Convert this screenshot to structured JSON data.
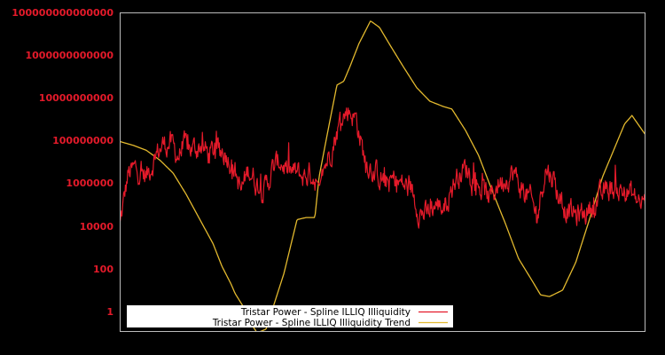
{
  "chart_data": {
    "type": "line",
    "title": "",
    "xlabel": "",
    "ylabel": "",
    "yscale": "log",
    "ylim": [
      0.1,
      100000000000000
    ],
    "grid": false,
    "legend_position": "lower-left (inside)",
    "background": "#000000",
    "frame_color": "#bbbbbb",
    "y_ticks": [
      {
        "value": 100000000000000,
        "label": "100000000000000"
      },
      {
        "value": 1000000000000,
        "label": "1000000000000"
      },
      {
        "value": 10000000000,
        "label": "10000000000"
      },
      {
        "value": 100000000,
        "label": "100000000"
      },
      {
        "value": 1000000,
        "label": "1000000"
      },
      {
        "value": 10000,
        "label": "10000"
      },
      {
        "value": 100,
        "label": "100"
      },
      {
        "value": 1,
        "label": "1"
      }
    ],
    "x_normalized_range": [
      0,
      100
    ],
    "series": [
      {
        "name": "Tristar Power - Spline ILLIQ Illiquidity",
        "color": "#e41a2a",
        "style": "noisy",
        "x": [
          0,
          1.5,
          3,
          5,
          6.5,
          8,
          9.5,
          11,
          12.5,
          14,
          15.5,
          17,
          18.5,
          20,
          21.5,
          23,
          24.5,
          26,
          27.5,
          29,
          30.5,
          32,
          33.5,
          35,
          36.5,
          38,
          38.5,
          40,
          42,
          43.5,
          45,
          46.5,
          48,
          49.5,
          51,
          52.5,
          54,
          55.5,
          57,
          58.5,
          60,
          61.5,
          63,
          64.5,
          66,
          67.5,
          69,
          70.5,
          72,
          73.5,
          75,
          76.5,
          78,
          79.5,
          81,
          82.5,
          84,
          85.5,
          87,
          88.5,
          90,
          91.5,
          93,
          94.5,
          96,
          97.5,
          99,
          100
        ],
        "values": [
          12000,
          2500000,
          5000000,
          2000000,
          15000000,
          60000000,
          80000000,
          20000000,
          50000000,
          40000000,
          60000000,
          20000000,
          45000000,
          30000000,
          8000000,
          400000,
          5000000,
          1000000,
          500000,
          4000000,
          12000000,
          3000000,
          3000000,
          2000000,
          3000000,
          800000,
          3000000,
          30000000,
          800000000,
          3000000000,
          1000000000,
          15000000,
          5000000,
          2000000,
          1000000,
          1500000,
          800000,
          500000,
          50000,
          30000,
          100000,
          80000,
          500000,
          3000000,
          5000000,
          2000000,
          400000,
          200000,
          1000000,
          2000000,
          3000000,
          500000,
          200000,
          30000,
          5000000,
          2000000,
          100000,
          50000,
          30000,
          40000,
          100000,
          200000,
          600000,
          500000,
          400000,
          300000,
          100000,
          150000
        ]
      },
      {
        "name": "Tristar Power - Spline ILLIQ Illiquidity Trend",
        "color": "#e3b92e",
        "style": "smooth",
        "x": [
          0,
          2.5,
          5,
          7.6,
          10.1,
          12.6,
          15.2,
          17.7,
          19.4,
          21.1,
          21.9,
          23.6,
          25.3,
          26.1,
          27.8,
          29.5,
          31.2,
          33.7,
          35.4,
          37.1,
          37.9,
          39.6,
          41.3,
          42.6,
          43.8,
          45.5,
          47.7,
          49.4,
          51.4,
          53.9,
          56.5,
          59,
          61.5,
          63.2,
          65.8,
          68.3,
          70.8,
          73.4,
          75.9,
          78.4,
          80.1,
          81.8,
          84.3,
          86.8,
          89.4,
          91.9,
          94.4,
          96.1,
          97.5,
          100
        ],
        "values": [
          90000000,
          60000000,
          35000000,
          12000000,
          3000000,
          300000,
          20000,
          1500,
          130,
          20,
          7,
          1.5,
          0.2,
          0.1,
          0.15,
          3,
          60,
          20000,
          25000,
          25000,
          2000000,
          300000000,
          40000000000,
          60000000000,
          300000000000,
          3500000000000,
          40000000000000,
          20000000000000,
          3000000000000,
          300000000000,
          30000000000,
          7000000000,
          4000000000,
          3000000000,
          300000000,
          20000000,
          500000,
          13000,
          300,
          30,
          6,
          5,
          10,
          200,
          20000,
          2000000,
          60000000,
          600000000,
          1500000000,
          200000000
        ]
      }
    ]
  },
  "legend": {
    "items": [
      {
        "label": "Tristar Power - Spline ILLIQ Illiquidity",
        "color": "#e41a2a"
      },
      {
        "label": "Tristar Power - Spline ILLIQ Illiquidity Trend",
        "color": "#e3b92e"
      }
    ]
  }
}
